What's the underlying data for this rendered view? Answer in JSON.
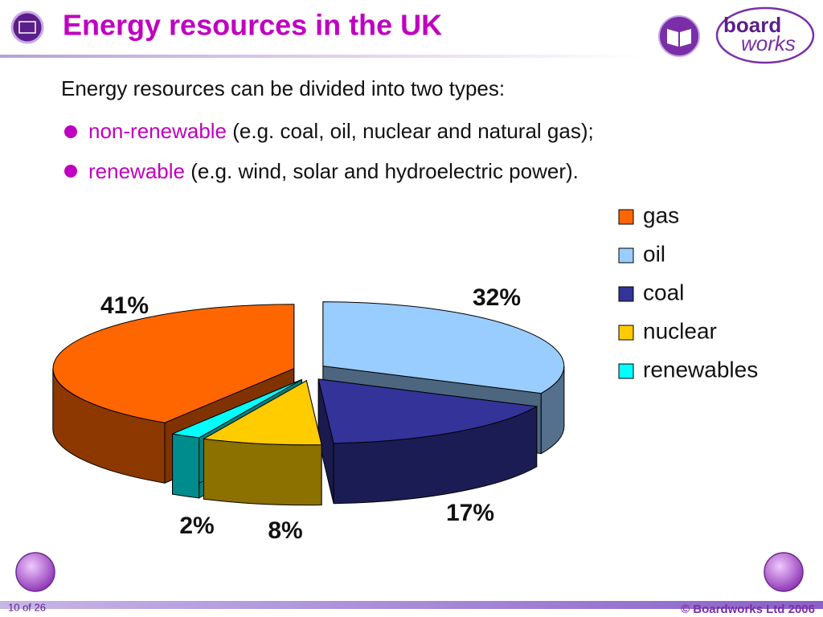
{
  "header": {
    "title": "Energy resources in the UK",
    "logo": [
      "board",
      "works"
    ]
  },
  "body": {
    "intro": "Energy resources can be divided into two types:",
    "bullets": [
      {
        "highlight": "non-renewable",
        "text": "(e.g. coal, oil, nuclear and natural gas);"
      },
      {
        "highlight": "renewable",
        "text": "(e.g. wind, solar and hydroelectric power)."
      }
    ]
  },
  "chart_data": {
    "type": "pie",
    "three_d": true,
    "exploded": true,
    "legend": "right",
    "categories": [
      "gas",
      "oil",
      "coal",
      "nuclear",
      "renewables"
    ],
    "values": [
      41,
      32,
      17,
      8,
      2
    ],
    "value_labels": [
      "41%",
      "32%",
      "17%",
      "8%",
      "2%"
    ],
    "colors": [
      "#ff6600",
      "#99ccff",
      "#333399",
      "#ffcc00",
      "#00ffff"
    ]
  },
  "footer": {
    "page": "10 of 26",
    "copyright": "© Boardworks Ltd 2006"
  }
}
